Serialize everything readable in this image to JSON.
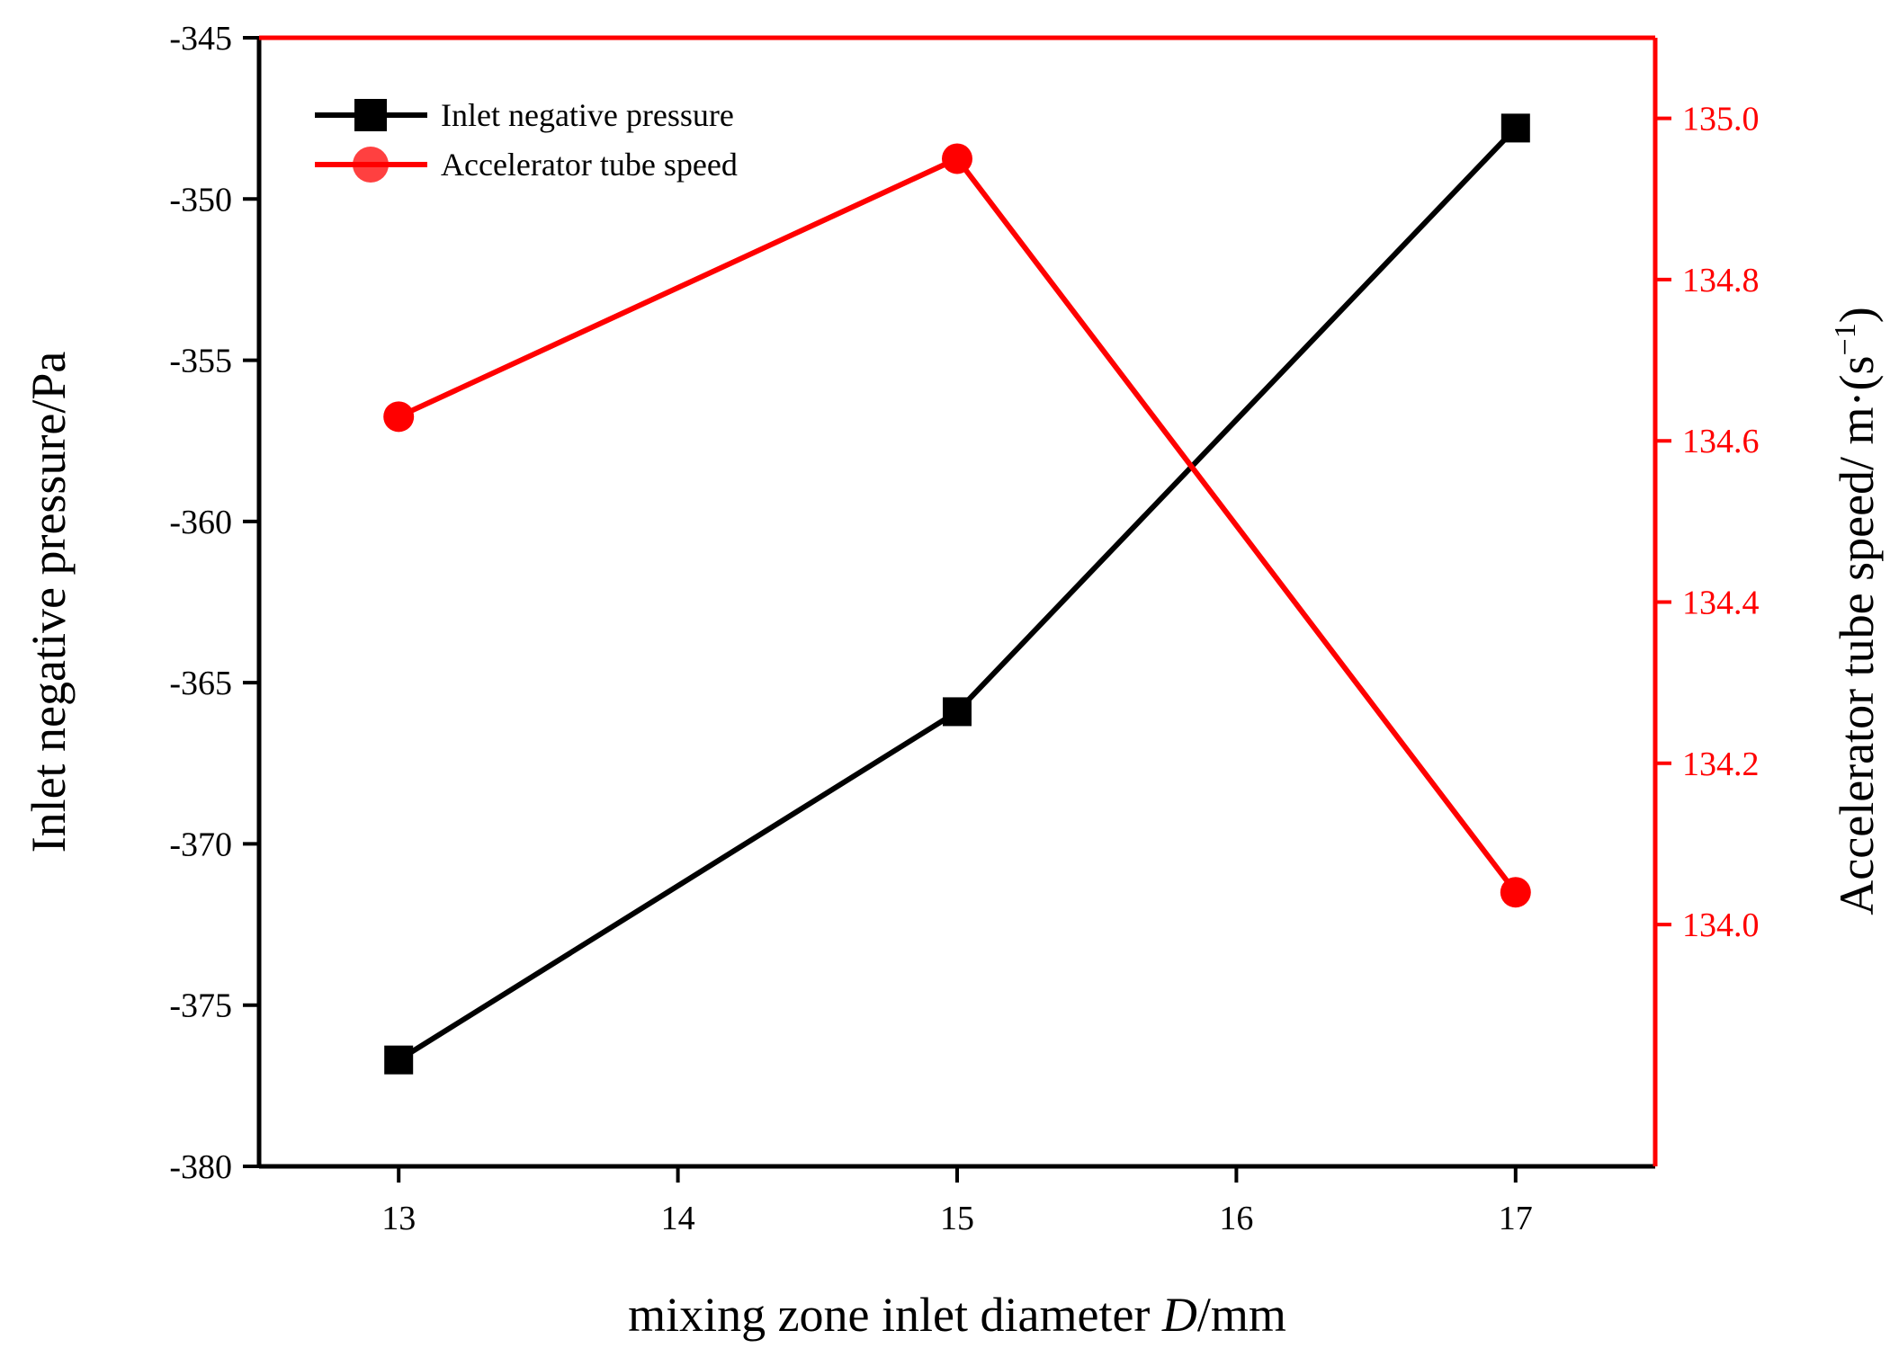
{
  "chart_data": {
    "type": "line",
    "xlabel_prefix": "mixing zone inlet diameter ",
    "xlabel_italic": "D",
    "xlabel_suffix": "/mm",
    "ylabel_left": "Inlet negative pressure/Pa",
    "ylabel_right_main": "Accelerator tube speed/ m·(s",
    "ylabel_right_sup": "−1",
    "ylabel_right_end": ")",
    "xlim": [
      12.5,
      17.5
    ],
    "x_ticks": [
      13,
      14,
      15,
      16,
      17
    ],
    "ylim_left": [
      -380,
      -345
    ],
    "y_ticks_left": [
      -345,
      -350,
      -355,
      -360,
      -365,
      -370,
      -375,
      -380
    ],
    "ylim_right": [
      133.7,
      135.1
    ],
    "y_ticks_right": [
      "134.0",
      "134.2",
      "134.4",
      "134.6",
      "134.8",
      "135.0"
    ],
    "legend_position": "top-left",
    "series": [
      {
        "name": "Inlet negative pressure",
        "axis": "left",
        "color": "#000000",
        "marker": "square",
        "x": [
          13,
          15,
          17
        ],
        "y": [
          -376.7,
          -365.9,
          -347.8
        ]
      },
      {
        "name": "Accelerator tube speed",
        "axis": "right",
        "color": "#ff0000",
        "marker": "circle",
        "x": [
          13,
          15,
          17
        ],
        "y": [
          134.63,
          134.95,
          134.04
        ]
      }
    ]
  }
}
